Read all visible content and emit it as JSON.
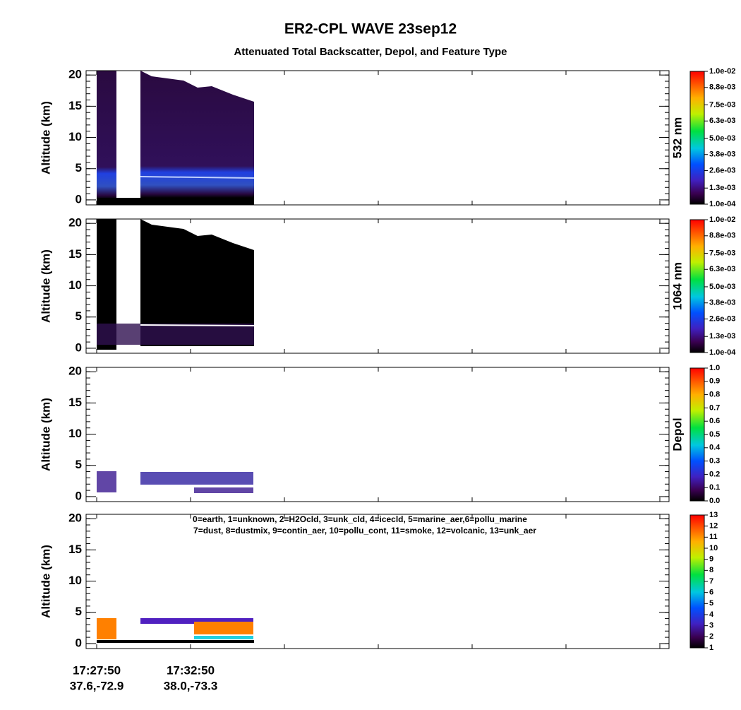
{
  "title": "ER2-CPL  WAVE  23sep12",
  "subtitle": "Attenuated Total Backscatter, Depol, and Feature Type",
  "x_labels": [
    {
      "time": "17:27:50",
      "position": "37.6,-72.9"
    },
    {
      "time": "17:32:50",
      "position": "38.0,-73.3"
    }
  ],
  "chart_data": [
    {
      "type": "heatmap",
      "ylabel": "Altitude (km)",
      "ylim": [
        -0.8,
        20.7
      ],
      "yticks": [
        0,
        5,
        10,
        15,
        20
      ],
      "colorbar_label": "532 nm",
      "clim": [
        0.0001,
        0.01
      ],
      "cticks": [
        {
          "value": 0.0001,
          "label": "1.0e-04"
        },
        {
          "value": 0.0013,
          "label": "1.3e-03"
        },
        {
          "value": 0.0026,
          "label": "2.6e-03"
        },
        {
          "value": 0.0038,
          "label": "3.8e-03"
        },
        {
          "value": 0.005,
          "label": "5.0e-03"
        },
        {
          "value": 0.0063,
          "label": "6.3e-03"
        },
        {
          "value": 0.0075,
          "label": "7.5e-03"
        },
        {
          "value": 0.0088,
          "label": "8.8e-03"
        },
        {
          "value": 0.01,
          "label": "1.0e-02"
        }
      ]
    },
    {
      "type": "heatmap",
      "ylabel": "Altitude (km)",
      "ylim": [
        -0.8,
        20.7
      ],
      "yticks": [
        0,
        5,
        10,
        15,
        20
      ],
      "colorbar_label": "1064 nm",
      "clim": [
        0.0001,
        0.01
      ],
      "cticks": [
        {
          "value": 0.0001,
          "label": "1.0e-04"
        },
        {
          "value": 0.0013,
          "label": "1.3e-03"
        },
        {
          "value": 0.0026,
          "label": "2.6e-03"
        },
        {
          "value": 0.0038,
          "label": "3.8e-03"
        },
        {
          "value": 0.005,
          "label": "5.0e-03"
        },
        {
          "value": 0.0063,
          "label": "6.3e-03"
        },
        {
          "value": 0.0075,
          "label": "7.5e-03"
        },
        {
          "value": 0.0088,
          "label": "8.8e-03"
        },
        {
          "value": 0.01,
          "label": "1.0e-02"
        }
      ]
    },
    {
      "type": "heatmap",
      "ylabel": "Altitude (km)",
      "ylim": [
        -0.8,
        20.7
      ],
      "yticks": [
        0,
        5,
        10,
        15,
        20
      ],
      "colorbar_label": "Depol",
      "clim": [
        0,
        1
      ],
      "cticks": [
        {
          "value": 0,
          "label": "0.0"
        },
        0.1,
        0.2,
        0.3,
        0.4,
        0.5,
        0.6,
        0.7,
        0.8,
        0.9,
        {
          "value": 1,
          "label": "1.0"
        }
      ]
    },
    {
      "type": "heatmap",
      "ylabel": "Altitude (km)",
      "ylim": [
        -0.8,
        20.7
      ],
      "yticks": [
        0,
        5,
        10,
        15,
        20
      ],
      "colorbar_label": null,
      "clim": [
        1,
        13
      ],
      "cticks": [
        1,
        2,
        3,
        4,
        5,
        6,
        7,
        8,
        9,
        10,
        11,
        12,
        13
      ],
      "annotations": [
        "0=earth, 1=unknown, 2=H2Ocld, 3=unk_cld, 4=icecld, 5=marine_aer,6=pollu_marine",
        "7=dust, 8=dustmix, 9=contin_aer, 10=pollu_cont, 11=smoke, 12=volcanic, 13=unk_aer"
      ]
    }
  ]
}
